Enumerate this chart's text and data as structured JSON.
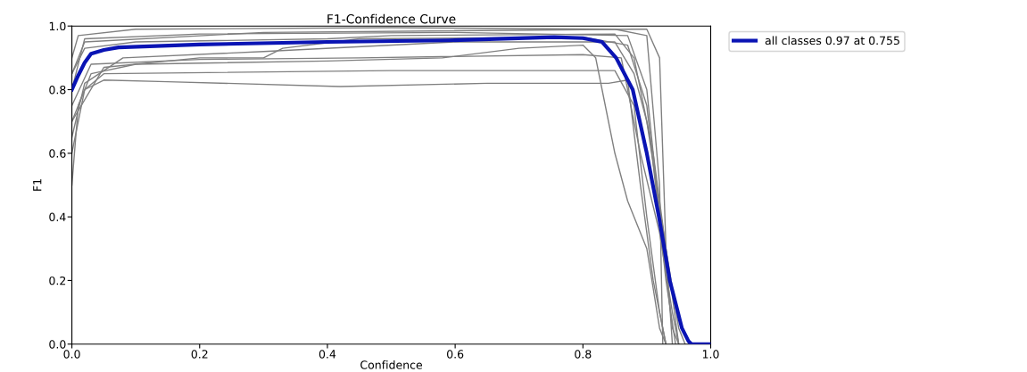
{
  "chart_data": {
    "type": "line",
    "title": "F1-Confidence Curve",
    "xlabel": "Confidence",
    "ylabel": "F1",
    "xlim": [
      0,
      1
    ],
    "ylim": [
      0,
      1
    ],
    "xticks": [
      {
        "value": 0,
        "label": "0.0"
      },
      0.2,
      0.4,
      0.6,
      0.8,
      {
        "value": 1,
        "label": "1.0"
      }
    ],
    "yticks": [
      {
        "value": 0,
        "label": "0.0"
      },
      0.2,
      0.4,
      0.6,
      0.8,
      {
        "value": 1,
        "label": "1.0"
      }
    ],
    "grid": false,
    "legend": "top right",
    "line_style": "solid",
    "marker": "none",
    "series": [
      {
        "color": "#808080",
        "x": [
          0,
          0.01,
          0.02,
          0.05,
          0.15,
          0.42,
          0.65,
          0.84,
          0.87,
          0.89,
          0.91,
          0.93
        ],
        "values": [
          0.5,
          0.75,
          0.8,
          0.83,
          0.825,
          0.81,
          0.82,
          0.82,
          0.83,
          0.5,
          0.2,
          0
        ]
      },
      {
        "color": "#808080",
        "x": [
          0,
          0.02,
          0.05,
          0.5,
          0.85,
          0.88,
          0.9,
          0.92,
          0.93
        ],
        "values": [
          0.6,
          0.8,
          0.85,
          0.86,
          0.86,
          0.75,
          0.4,
          0.1,
          0
        ]
      },
      {
        "color": "#808080",
        "x": [
          0,
          0.03,
          0.1,
          0.4,
          0.58,
          0.7,
          0.8,
          0.82,
          0.83,
          0.85,
          0.87,
          0.9,
          0.92,
          0.93
        ],
        "values": [
          0.7,
          0.85,
          0.88,
          0.89,
          0.9,
          0.93,
          0.94,
          0.9,
          0.8,
          0.6,
          0.45,
          0.3,
          0.05,
          0
        ]
      },
      {
        "color": "#808080",
        "x": [
          0,
          0.01,
          0.1,
          0.5,
          0.85,
          0.9,
          0.92,
          0.925
        ],
        "values": [
          0.9,
          0.97,
          0.99,
          0.995,
          0.99,
          0.97,
          0.5,
          0
        ]
      },
      {
        "color": "#808080",
        "x": [
          0,
          0.02,
          0.2,
          0.6,
          0.87,
          0.9,
          0.92,
          0.94,
          0.95
        ],
        "values": [
          0.8,
          0.96,
          0.975,
          0.98,
          0.97,
          0.8,
          0.4,
          0.05,
          0
        ]
      },
      {
        "color": "#808080",
        "x": [
          0,
          0.02,
          0.3,
          0.88,
          0.9,
          0.92,
          0.93,
          0.94
        ],
        "values": [
          0.85,
          0.95,
          0.98,
          0.99,
          0.99,
          0.9,
          0.3,
          0
        ]
      },
      {
        "color": "#808080",
        "x": [
          0,
          0.02,
          0.08,
          0.3,
          0.6,
          0.85,
          0.88,
          0.9,
          0.93,
          0.95,
          0.96
        ],
        "values": [
          0.65,
          0.82,
          0.9,
          0.92,
          0.95,
          0.95,
          0.85,
          0.7,
          0.3,
          0.05,
          0
        ]
      },
      {
        "color": "#808080",
        "x": [
          0,
          0.03,
          0.2,
          0.45,
          0.8,
          0.86,
          0.89,
          0.92,
          0.94,
          0.95
        ],
        "values": [
          0.75,
          0.88,
          0.895,
          0.9,
          0.91,
          0.9,
          0.6,
          0.35,
          0.1,
          0
        ]
      },
      {
        "color": "#808080",
        "x": [
          0,
          0.02,
          0.1,
          0.4,
          0.5,
          0.85,
          0.88,
          0.91,
          0.93,
          0.95
        ],
        "values": [
          0.85,
          0.93,
          0.95,
          0.96,
          0.97,
          0.975,
          0.9,
          0.6,
          0.3,
          0
        ]
      },
      {
        "color": "#808080",
        "x": [
          0,
          0.05,
          0.2,
          0.3,
          0.33,
          0.45,
          0.8,
          0.87,
          0.9,
          0.93,
          0.945
        ],
        "values": [
          0.7,
          0.87,
          0.9,
          0.9,
          0.93,
          0.96,
          0.965,
          0.94,
          0.75,
          0.2,
          0
        ]
      },
      {
        "name": "all classes 0.97 at 0.755",
        "color": "#0a14b4",
        "x": [
          0,
          0.01,
          0.02,
          0.03,
          0.05,
          0.073,
          0.2,
          0.4,
          0.59,
          0.755,
          0.8,
          0.83,
          0.852,
          0.878,
          0.9,
          0.919,
          0.936,
          0.955,
          0.965,
          0.97,
          1.0
        ],
        "values": [
          0.8,
          0.845,
          0.885,
          0.913,
          0.925,
          0.933,
          0.942,
          0.95,
          0.955,
          0.965,
          0.962,
          0.95,
          0.9,
          0.8,
          0.6,
          0.4,
          0.2,
          0.05,
          0.01,
          0,
          0
        ]
      }
    ]
  }
}
